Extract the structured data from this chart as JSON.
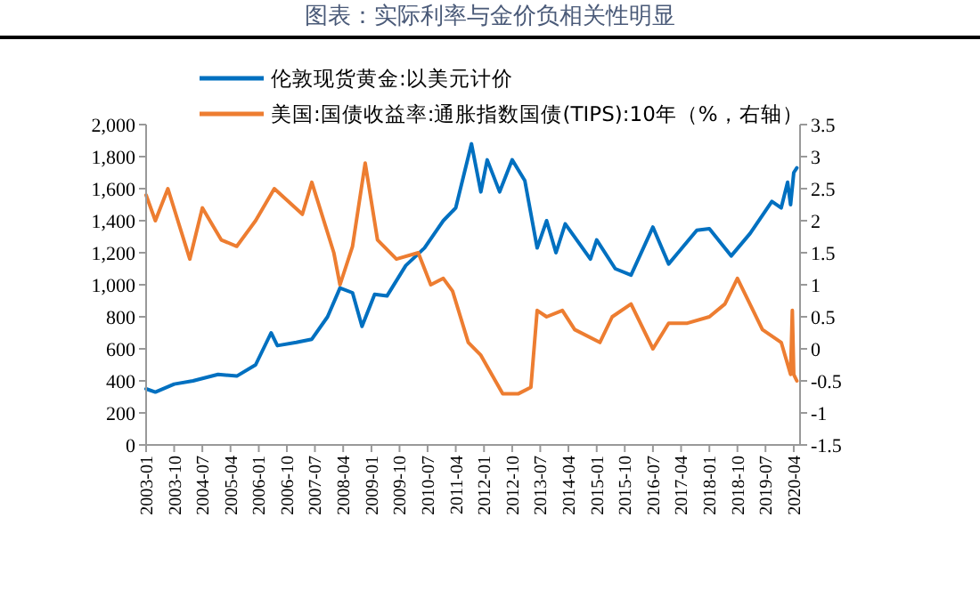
{
  "chart_data": {
    "type": "line",
    "title": "图表：实际利率与金价负相关性明显",
    "xlim": [
      "2003-01",
      "2020-06"
    ],
    "xticks": [
      "2003-01",
      "2003-10",
      "2004-07",
      "2005-04",
      "2006-01",
      "2006-10",
      "2007-07",
      "2008-04",
      "2009-01",
      "2009-10",
      "2010-07",
      "2011-04",
      "2012-01",
      "2012-10",
      "2013-07",
      "2014-04",
      "2015-01",
      "2015-10",
      "2016-07",
      "2017-04",
      "2018-01",
      "2018-10",
      "2019-07",
      "2020-04"
    ],
    "ylim": [
      0,
      2000
    ],
    "yticks": [
      {
        "value": 0,
        "label": "0"
      },
      {
        "value": 200,
        "label": "200"
      },
      {
        "value": 400,
        "label": "400"
      },
      {
        "value": 600,
        "label": "600"
      },
      {
        "value": 800,
        "label": "800"
      },
      {
        "value": 1000,
        "label": "1,000"
      },
      {
        "value": 1200,
        "label": "1,200"
      },
      {
        "value": 1400,
        "label": "1,400"
      },
      {
        "value": 1600,
        "label": "1,600"
      },
      {
        "value": 1800,
        "label": "1,800"
      },
      {
        "value": 2000,
        "label": "2,000"
      }
    ],
    "y2lim": [
      -1.5,
      3.5
    ],
    "y2ticks": [
      -1.5,
      -1,
      -0.5,
      0,
      0.5,
      1,
      1.5,
      2,
      2.5,
      3,
      3.5
    ],
    "legend": "top",
    "grid": false,
    "series": [
      {
        "name": "伦敦现货黄金:以美元计价",
        "color": "#0070c0",
        "x": [
          "2003-01",
          "2003-04",
          "2003-10",
          "2004-04",
          "2004-12",
          "2005-06",
          "2005-12",
          "2006-05",
          "2006-07",
          "2007-01",
          "2007-06",
          "2007-11",
          "2008-03",
          "2008-07",
          "2008-10",
          "2009-02",
          "2009-06",
          "2009-12",
          "2010-06",
          "2010-12",
          "2011-04",
          "2011-09",
          "2011-12",
          "2012-02",
          "2012-06",
          "2012-10",
          "2013-02",
          "2013-06",
          "2013-09",
          "2013-12",
          "2014-03",
          "2014-11",
          "2015-01",
          "2015-07",
          "2015-12",
          "2016-07",
          "2016-12",
          "2017-09",
          "2018-01",
          "2018-08",
          "2019-02",
          "2019-09",
          "2019-12",
          "2020-02",
          "2020-03",
          "2020-04",
          "2020-05"
        ],
        "values": [
          350,
          330,
          380,
          400,
          440,
          430,
          500,
          700,
          620,
          640,
          660,
          800,
          980,
          950,
          740,
          940,
          930,
          1120,
          1230,
          1400,
          1480,
          1880,
          1580,
          1780,
          1580,
          1780,
          1650,
          1230,
          1400,
          1200,
          1380,
          1160,
          1280,
          1100,
          1060,
          1360,
          1130,
          1340,
          1350,
          1180,
          1320,
          1520,
          1480,
          1640,
          1500,
          1700,
          1730
        ]
      },
      {
        "name": "美国:国债收益率:通胀指数国债(TIPS):10年（%，右轴）",
        "color": "#ed7d31",
        "axis": "y2",
        "x": [
          "2003-01",
          "2003-04",
          "2003-08",
          "2004-03",
          "2004-07",
          "2005-01",
          "2005-06",
          "2005-12",
          "2006-06",
          "2007-03",
          "2007-06",
          "2008-01",
          "2008-03",
          "2008-07",
          "2008-11",
          "2009-03",
          "2009-09",
          "2010-04",
          "2010-08",
          "2010-12",
          "2011-03",
          "2011-08",
          "2011-12",
          "2012-07",
          "2012-12",
          "2013-04",
          "2013-06",
          "2013-09",
          "2014-02",
          "2014-06",
          "2015-02",
          "2015-06",
          "2015-12",
          "2016-07",
          "2016-12",
          "2017-06",
          "2018-01",
          "2018-06",
          "2018-10",
          "2019-06",
          "2019-12",
          "2020-03",
          "2020-03-18",
          "2020-04",
          "2020-05"
        ],
        "values": [
          2.4,
          2.0,
          2.5,
          1.4,
          2.2,
          1.7,
          1.6,
          2.0,
          2.5,
          2.1,
          2.6,
          1.5,
          1.0,
          1.6,
          2.9,
          1.7,
          1.4,
          1.5,
          1.0,
          1.1,
          0.9,
          0.1,
          -0.1,
          -0.7,
          -0.7,
          -0.6,
          0.6,
          0.5,
          0.6,
          0.3,
          0.1,
          0.5,
          0.7,
          0.0,
          0.4,
          0.4,
          0.5,
          0.7,
          1.1,
          0.3,
          0.1,
          -0.4,
          0.6,
          -0.4,
          -0.5
        ]
      }
    ]
  }
}
